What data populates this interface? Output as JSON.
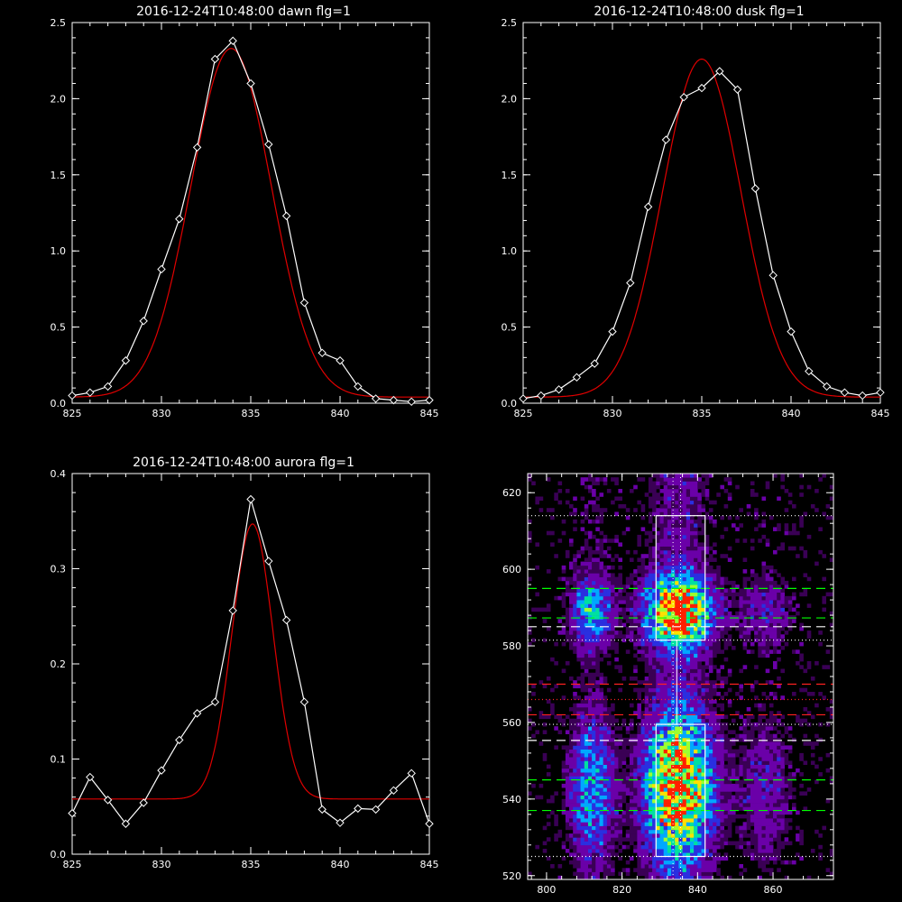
{
  "chart_data": [
    {
      "type": "line",
      "title": "2016-12-24T10:48:00 dawn flg=1",
      "xlim": [
        825,
        845
      ],
      "ylim": [
        0,
        2.5
      ],
      "xticks": [
        825,
        830,
        835,
        840,
        845
      ],
      "yticks": [
        0.0,
        0.5,
        1.0,
        1.5,
        2.0,
        2.5
      ],
      "ytick_labels": [
        "0.0",
        "0.5",
        "1.0",
        "1.5",
        "2.0",
        "2.5"
      ],
      "series": [
        {
          "role": "observed",
          "color": "#ffffff",
          "markers": "diamond",
          "x": [
            825,
            826,
            827,
            828,
            829,
            830,
            831,
            832,
            833,
            834,
            835,
            836,
            837,
            838,
            839,
            840,
            841,
            842,
            843,
            844,
            845
          ],
          "y": [
            0.05,
            0.07,
            0.11,
            0.28,
            0.54,
            0.88,
            1.21,
            1.68,
            2.26,
            2.38,
            2.1,
            1.7,
            1.23,
            0.66,
            0.33,
            0.28,
            0.11,
            0.03,
            0.02,
            0.01,
            0.02
          ]
        },
        {
          "role": "fit",
          "color": "#e00000",
          "model": {
            "peak": 2.29,
            "center": 833.9,
            "sigma": 2.25,
            "baseline": 0.04
          }
        }
      ]
    },
    {
      "type": "line",
      "title": "2016-12-24T10:48:00 dusk flg=1",
      "xlim": [
        825,
        845
      ],
      "ylim": [
        0,
        2.5
      ],
      "xticks": [
        825,
        830,
        835,
        840,
        845
      ],
      "yticks": [
        0.0,
        0.5,
        1.0,
        1.5,
        2.0,
        2.5
      ],
      "ytick_labels": [
        "0.0",
        "0.5",
        "1.0",
        "1.5",
        "2.0",
        "2.5"
      ],
      "series": [
        {
          "role": "observed",
          "color": "#ffffff",
          "markers": "diamond",
          "x": [
            825,
            826,
            827,
            828,
            829,
            830,
            831,
            832,
            833,
            834,
            835,
            836,
            837,
            838,
            839,
            840,
            841,
            842,
            843,
            844,
            845
          ],
          "y": [
            0.03,
            0.05,
            0.09,
            0.17,
            0.26,
            0.47,
            0.79,
            1.29,
            1.73,
            2.01,
            2.07,
            2.18,
            2.06,
            1.41,
            0.84,
            0.47,
            0.21,
            0.11,
            0.07,
            0.05,
            0.07
          ]
        },
        {
          "role": "fit",
          "color": "#e00000",
          "model": {
            "peak": 2.22,
            "center": 835.0,
            "sigma": 2.2,
            "baseline": 0.04
          }
        }
      ]
    },
    {
      "type": "line",
      "title": "2016-12-24T10:48:00 aurora flg=1",
      "xlim": [
        825,
        845
      ],
      "ylim": [
        0,
        0.4
      ],
      "xticks": [
        825,
        830,
        835,
        840,
        845
      ],
      "yticks": [
        0.0,
        0.1,
        0.2,
        0.3,
        0.4
      ],
      "ytick_labels": [
        "0.0",
        "0.1",
        "0.2",
        "0.3",
        "0.4"
      ],
      "series": [
        {
          "role": "observed",
          "color": "#ffffff",
          "markers": "diamond",
          "x": [
            825,
            826,
            827,
            828,
            829,
            830,
            831,
            832,
            833,
            834,
            835,
            836,
            837,
            838,
            839,
            840,
            841,
            842,
            843,
            844,
            845
          ],
          "y": [
            0.043,
            0.081,
            0.057,
            0.032,
            0.054,
            0.088,
            0.12,
            0.148,
            0.16,
            0.256,
            0.373,
            0.308,
            0.246,
            0.16,
            0.047,
            0.033,
            0.048,
            0.047,
            0.067,
            0.085,
            0.032
          ]
        },
        {
          "role": "fit",
          "color": "#e00000",
          "model": {
            "peak": 0.289,
            "center": 835.1,
            "sigma": 1.15,
            "baseline": 0.058
          }
        }
      ]
    },
    {
      "type": "heatmap",
      "xlim": [
        795,
        876
      ],
      "ylim": [
        519,
        625
      ],
      "xticks": [
        800,
        820,
        840,
        860
      ],
      "yticks": [
        520,
        540,
        560,
        580,
        600,
        620
      ],
      "colormap": [
        "#000000",
        "#3a0055",
        "#6a00a8",
        "#2a2fe0",
        "#00a8ff",
        "#00e0a0",
        "#9cff30",
        "#ffe000",
        "#ff2000"
      ],
      "columns": [
        {
          "center": 812,
          "halfwidth": 4,
          "intensity": 0.45
        },
        {
          "center": 835,
          "halfwidth": 6,
          "intensity": 1.0
        },
        {
          "center": 858,
          "halfwidth": 5,
          "intensity": 0.2
        }
      ],
      "bands": [
        {
          "center": 589,
          "halfwidth": 6
        },
        {
          "center": 543,
          "halfwidth": 12
        }
      ],
      "boxes": [
        {
          "x0": 829,
          "x1": 842,
          "y0": 581.5,
          "y1": 614
        },
        {
          "x0": 829,
          "x1": 842,
          "y0": 525,
          "y1": 559.5
        }
      ],
      "vertical_lines": [
        {
          "x": 833.5,
          "color": "#ffffff",
          "style": "dotted"
        },
        {
          "x": 835.5,
          "color": "#ffffff",
          "style": "dotted"
        },
        {
          "x": 834.5,
          "color": "#ffffff",
          "style": "solid"
        }
      ],
      "horizontal_lines": [
        {
          "y": 614,
          "color": "#ffffff",
          "style": "dotted"
        },
        {
          "y": 595,
          "color": "#00ff00",
          "style": "dashed"
        },
        {
          "y": 587.3,
          "color": "#00ff00",
          "style": "dashed"
        },
        {
          "y": 585,
          "color": "#ffffff",
          "style": "dashed"
        },
        {
          "y": 581.5,
          "color": "#ffffff",
          "style": "dotted"
        },
        {
          "y": 570,
          "color": "#ff2020",
          "style": "dashed"
        },
        {
          "y": 566,
          "color": "#ff2020",
          "style": "dotted"
        },
        {
          "y": 562,
          "color": "#ff2020",
          "style": "dashed"
        },
        {
          "y": 559.5,
          "color": "#ffffff",
          "style": "dotted"
        },
        {
          "y": 555.3,
          "color": "#ffffff",
          "style": "dashed"
        },
        {
          "y": 545,
          "color": "#00ff00",
          "style": "dashed"
        },
        {
          "y": 537,
          "color": "#00ff00",
          "style": "dashed"
        },
        {
          "y": 525,
          "color": "#ffffff",
          "style": "dotted"
        }
      ]
    }
  ]
}
